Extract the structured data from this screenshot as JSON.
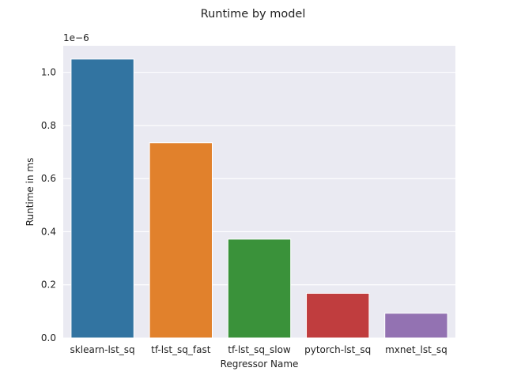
{
  "chart_data": {
    "type": "bar",
    "title": "Runtime by model",
    "xlabel": "Regressor Name",
    "ylabel": "Runtime in ms",
    "scale_offset_label": "1e−6",
    "categories": [
      "sklearn-lst_sq",
      "tf-lst_sq_fast",
      "tf-lst_sq_slow",
      "pytorch-lst_sq",
      "mxnet_lst_sq"
    ],
    "values": [
      1.05e-06,
      7.35e-07,
      3.72e-07,
      1.68e-07,
      9.3e-08
    ],
    "colors": [
      "#3274a1",
      "#e1812c",
      "#3a923a",
      "#c03d3e",
      "#9372b2"
    ],
    "ylim": [
      0,
      1.1e-06
    ],
    "yticks": [
      0,
      2e-07,
      4e-07,
      6e-07,
      8e-07,
      1e-06
    ],
    "ytick_labels": [
      "0.0",
      "0.2",
      "0.4",
      "0.6",
      "0.8",
      "1.0"
    ],
    "grid": true,
    "plot_background": "#eaeaf2"
  }
}
